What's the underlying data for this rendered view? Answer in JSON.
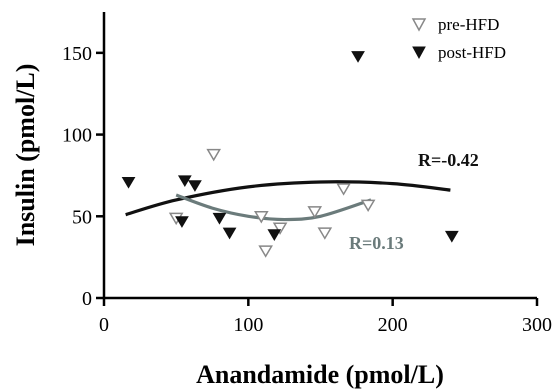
{
  "chart_data": {
    "type": "scatter",
    "title": "",
    "xlabel": "Anandamide (pmol/L)",
    "ylabel": "Insulin (pmol/L)",
    "xlim": [
      0,
      300
    ],
    "ylim": [
      0,
      175
    ],
    "xticks": [
      0,
      100,
      200,
      300
    ],
    "yticks": [
      0,
      50,
      100,
      150
    ],
    "grid": false,
    "legend_position": "top-right",
    "series": [
      {
        "name": "pre-HFD",
        "marker": "open-triangle-down",
        "color": "#888888",
        "points": [
          {
            "x": 50,
            "y": 49
          },
          {
            "x": 76,
            "y": 88
          },
          {
            "x": 109,
            "y": 50
          },
          {
            "x": 112,
            "y": 29
          },
          {
            "x": 122,
            "y": 43
          },
          {
            "x": 146,
            "y": 53
          },
          {
            "x": 153,
            "y": 40
          },
          {
            "x": 166,
            "y": 67
          },
          {
            "x": 183,
            "y": 57
          }
        ]
      },
      {
        "name": "post-HFD",
        "marker": "filled-triangle-down",
        "color": "#111111",
        "points": [
          {
            "x": 17,
            "y": 71
          },
          {
            "x": 54,
            "y": 47
          },
          {
            "x": 56,
            "y": 72
          },
          {
            "x": 63,
            "y": 69
          },
          {
            "x": 80,
            "y": 49
          },
          {
            "x": 87,
            "y": 40
          },
          {
            "x": 118,
            "y": 39
          },
          {
            "x": 176,
            "y": 148
          },
          {
            "x": 241,
            "y": 38
          }
        ]
      }
    ],
    "fits": [
      {
        "series": "post-HFD",
        "label": "R=-0.42",
        "color": "#111111",
        "x": [
          15,
          50,
          100,
          150,
          200,
          240
        ],
        "y": [
          51,
          60,
          68,
          71,
          70,
          66
        ]
      },
      {
        "series": "pre-HFD",
        "label": "R=0.13",
        "color": "#6b7b7b",
        "x": [
          50,
          75,
          100,
          125,
          150,
          185
        ],
        "y": [
          63,
          55,
          50,
          48,
          50,
          60
        ]
      }
    ]
  }
}
